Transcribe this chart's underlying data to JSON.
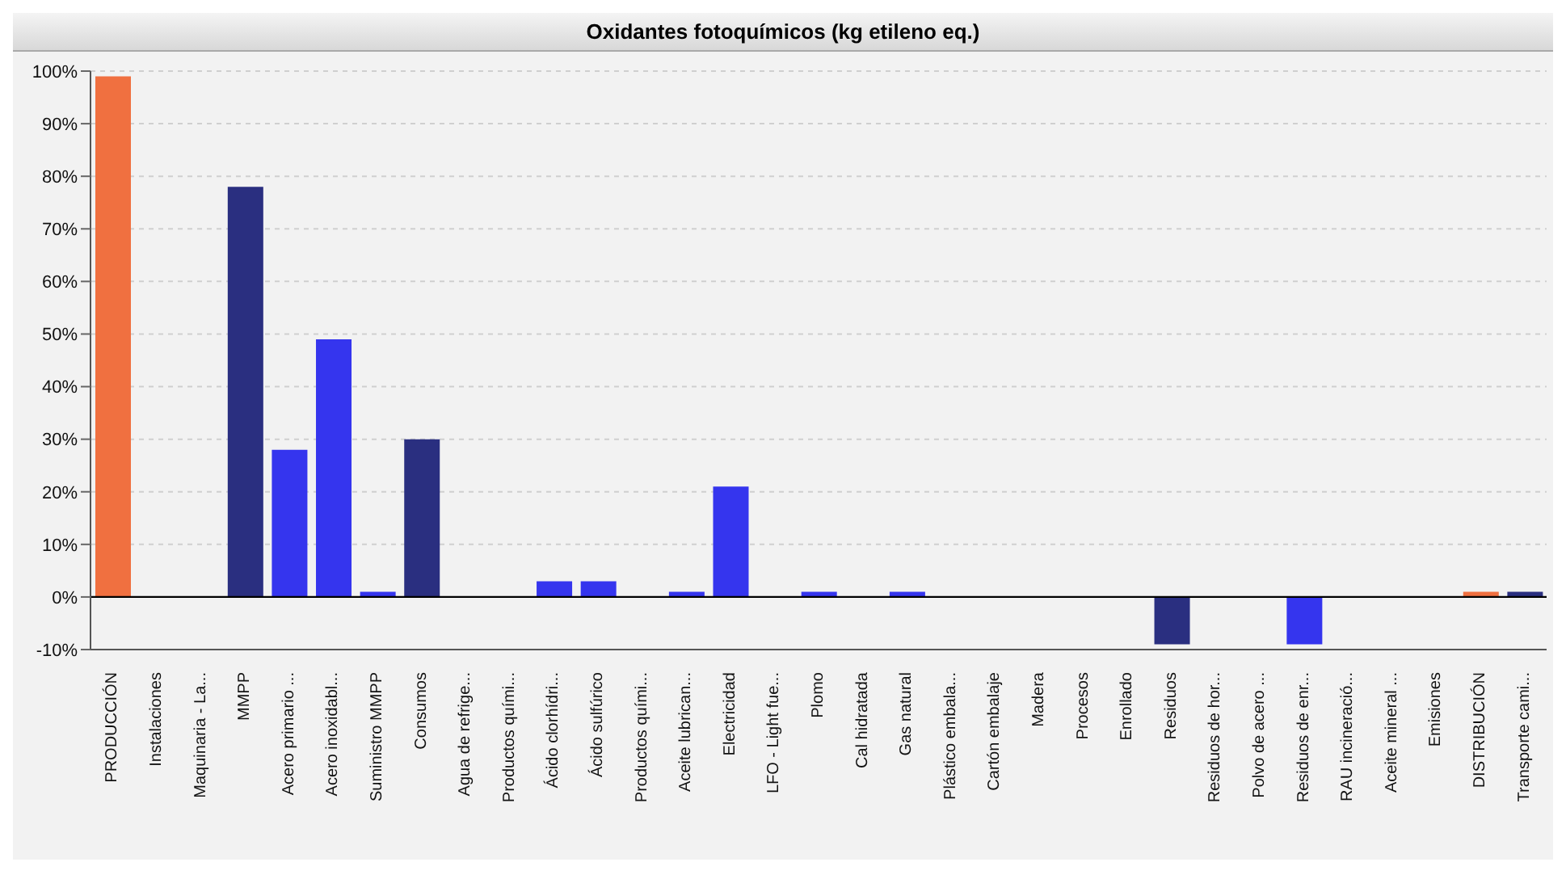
{
  "chart_data": {
    "type": "bar",
    "title": "Oxidantes fotoquímicos (kg etileno eq.)",
    "categories": [
      "PRODUCCIÓN",
      "Instalaciones",
      "Maquinaria - La...",
      "MMPP",
      "Acero primario ...",
      "Acero inoxidabl...",
      "Suministro MMPP",
      "Consumos",
      "Agua de refrige...",
      "Productos quími...",
      "Ácido clorhídri...",
      "Ácido sulfúrico",
      "Productos quími...",
      "Aceite lubrican...",
      "Electricidad",
      "LFO - Light fue...",
      "Plomo",
      "Cal hidratada",
      "Gas natural",
      "Plástico embala...",
      "Cartón embalaje",
      "Madera",
      "Procesos",
      "Enrollado",
      "Residuos",
      "Residuos de hor...",
      "Polvo de acero ...",
      "Residuos de enr...",
      "RAU incineració...",
      "Aceite mineral ...",
      "Emisiones",
      "DISTRIBUCIÓN",
      "Transporte cami..."
    ],
    "values": [
      99,
      0,
      0,
      78,
      28,
      49,
      1,
      30,
      0,
      0,
      3,
      3,
      0,
      1,
      21,
      0,
      1,
      0,
      1,
      0,
      0,
      0,
      0,
      0,
      -9,
      0,
      0,
      -9,
      0,
      0,
      0,
      1,
      1
    ],
    "colors": [
      "#f07040",
      "#2a2f80",
      "#2a2f80",
      "#2a2f80",
      "#3535ee",
      "#3535ee",
      "#3535ee",
      "#2a2f80",
      "#3535ee",
      "#3535ee",
      "#3535ee",
      "#3535ee",
      "#3535ee",
      "#3535ee",
      "#3535ee",
      "#3535ee",
      "#3535ee",
      "#3535ee",
      "#3535ee",
      "#3535ee",
      "#3535ee",
      "#3535ee",
      "#2a2f80",
      "#3535ee",
      "#2a2f80",
      "#3535ee",
      "#3535ee",
      "#3535ee",
      "#3535ee",
      "#3535ee",
      "#2a2f80",
      "#f07040",
      "#2a2f80"
    ],
    "ylim": [
      -10,
      100
    ],
    "yticks": [
      {
        "value": -10,
        "label": "-10%"
      },
      {
        "value": 0,
        "label": "0%"
      },
      {
        "value": 10,
        "label": "10%"
      },
      {
        "value": 20,
        "label": "20%"
      },
      {
        "value": 30,
        "label": "30%"
      },
      {
        "value": 40,
        "label": "40%"
      },
      {
        "value": 50,
        "label": "50%"
      },
      {
        "value": 60,
        "label": "60%"
      },
      {
        "value": 70,
        "label": "70%"
      },
      {
        "value": 80,
        "label": "80%"
      },
      {
        "value": 90,
        "label": "90%"
      },
      {
        "value": 100,
        "label": "100%"
      }
    ],
    "grid": "y",
    "ref_lines": [
      {
        "axis": "y",
        "value": 0,
        "color": "#000000"
      }
    ]
  }
}
